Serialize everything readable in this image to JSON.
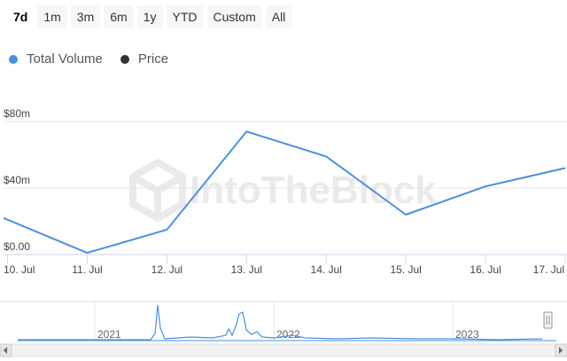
{
  "range_buttons": [
    {
      "label": "7d",
      "active": true
    },
    {
      "label": "1m",
      "active": false
    },
    {
      "label": "3m",
      "active": false
    },
    {
      "label": "6m",
      "active": false
    },
    {
      "label": "1y",
      "active": false
    },
    {
      "label": "YTD",
      "active": false
    },
    {
      "label": "Custom",
      "active": false
    },
    {
      "label": "All",
      "active": false
    }
  ],
  "legend": [
    {
      "label": "Total Volume",
      "color": "#4a90e2"
    },
    {
      "label": "Price",
      "color": "#333333"
    }
  ],
  "watermark": "IntoTheBlock",
  "colors": {
    "volume_line": "#4a90e2",
    "grid": "#e6e6e6",
    "axis": "#ccd6eb"
  },
  "chart_data": {
    "type": "line",
    "title": "",
    "xlabel": "",
    "ylabel": "",
    "categories": [
      "10. Jul",
      "11. Jul",
      "12. Jul",
      "13. Jul",
      "14. Jul",
      "15. Jul",
      "16. Jul",
      "17. Jul"
    ],
    "y_ticks": [
      "$0.00",
      "$40m",
      "$80m"
    ],
    "y_tick_values": [
      0,
      40,
      80
    ],
    "ylim": [
      0,
      80
    ],
    "x_start": 9.95,
    "x_end": 17.0,
    "grid": true,
    "series": [
      {
        "name": "Total Volume",
        "x": [
          9.95,
          11,
          12,
          13,
          14,
          15,
          16,
          17
        ],
        "values": [
          22,
          1,
          15,
          74,
          59,
          24,
          41,
          52
        ]
      }
    ]
  },
  "navigator": {
    "year_labels": [
      "2021",
      "2022",
      "2023"
    ]
  }
}
